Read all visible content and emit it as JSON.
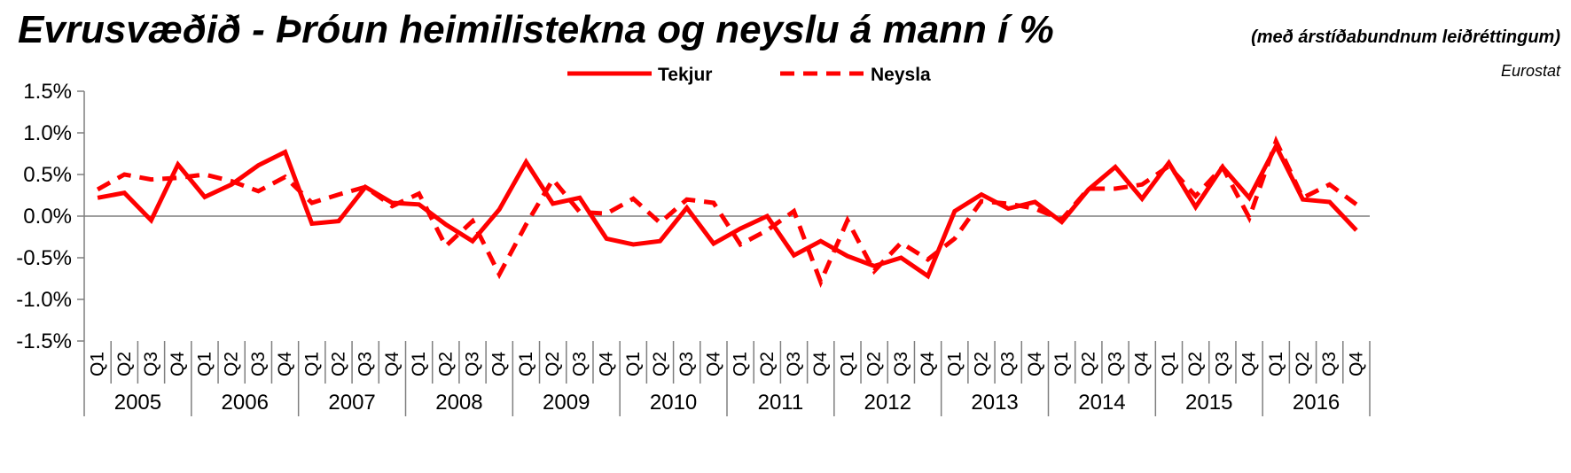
{
  "title": "Evrusvæðið - Þróun heimilistekna og neyslu á mann í %",
  "subtitle": "(með árstíðabundnum leiðréttingum)",
  "source": "Eurostat",
  "colors": {
    "series": "#ff0000",
    "axis": "#7f7f7f"
  },
  "chart_data": {
    "type": "line",
    "title": "Evrusvæðið - Þróun heimilistekna og neyslu á mann í %",
    "subtitle": "(með árstíðabundnum leiðréttingum)",
    "ylim": [
      -1.5,
      1.5
    ],
    "yticks": [
      "1.5%",
      "1.0%",
      "0.5%",
      "0.0%",
      "-0.5%",
      "-1.0%",
      "-1.5%"
    ],
    "ytick_values": [
      1.5,
      1.0,
      0.5,
      0.0,
      -0.5,
      -1.0,
      -1.5
    ],
    "grid": false,
    "legend_position": "top-center",
    "quarters": [
      "Q1",
      "Q2",
      "Q3",
      "Q4"
    ],
    "years": [
      "2005",
      "2006",
      "2007",
      "2008",
      "2009",
      "2010",
      "2011",
      "2012",
      "2013",
      "2014",
      "2015",
      "2016"
    ],
    "series": [
      {
        "name": "Tekjur",
        "style": "solid",
        "values": [
          0.22,
          0.28,
          -0.05,
          0.62,
          0.23,
          0.38,
          0.61,
          0.77,
          -0.09,
          -0.06,
          0.35,
          0.16,
          0.14,
          -0.1,
          -0.3,
          0.08,
          0.65,
          0.15,
          0.22,
          -0.27,
          -0.34,
          -0.3,
          0.1,
          -0.33,
          -0.15,
          0.0,
          -0.47,
          -0.3,
          -0.48,
          -0.6,
          -0.5,
          -0.72,
          0.06,
          0.26,
          0.09,
          0.17,
          -0.07,
          0.32,
          0.59,
          0.21,
          0.64,
          0.11,
          0.59,
          0.22,
          0.84,
          0.2,
          0.17,
          -0.17
        ]
      },
      {
        "name": "Neysla",
        "style": "dashed",
        "values": [
          0.32,
          0.5,
          0.44,
          0.46,
          0.5,
          0.42,
          0.3,
          0.47,
          0.16,
          0.26,
          0.35,
          0.12,
          0.27,
          -0.36,
          -0.06,
          -0.7,
          -0.1,
          0.44,
          0.05,
          0.03,
          0.21,
          -0.08,
          0.2,
          0.16,
          -0.34,
          -0.17,
          0.06,
          -0.79,
          -0.05,
          -0.66,
          -0.32,
          -0.52,
          -0.27,
          0.18,
          0.15,
          0.09,
          -0.04,
          0.33,
          0.33,
          0.38,
          0.6,
          0.24,
          0.59,
          -0.02,
          0.9,
          0.22,
          0.38,
          0.14
        ]
      }
    ]
  }
}
